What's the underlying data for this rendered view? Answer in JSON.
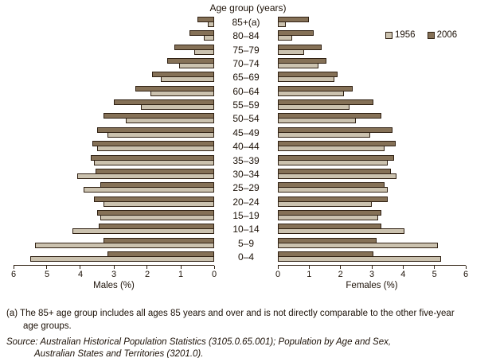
{
  "title": "Age group (years)",
  "legend": [
    {
      "label": "1956",
      "color": "#cbc2af"
    },
    {
      "label": "2006",
      "color": "#857157"
    }
  ],
  "colors": {
    "bar_1956": "#cbc2af",
    "bar_2006": "#857157",
    "outline": "#2f2012",
    "text": "#1d1208",
    "background": "#ffffff"
  },
  "chart_data": {
    "type": "bar",
    "subtype": "population-pyramid",
    "title": "Age group (years)",
    "categories": [
      "85+(a)",
      "80–84",
      "75–79",
      "70–74",
      "65–69",
      "60–64",
      "55–59",
      "50–54",
      "45–49",
      "40–44",
      "35–39",
      "30–34",
      "25–29",
      "20–24",
      "15–19",
      "10–14",
      "5–9",
      "0–4"
    ],
    "legend_position": "top-right",
    "bar_stack_order": "2006 above 1956 in each category pair",
    "panels": [
      {
        "side": "male",
        "axis_label": "Males (%)",
        "xlim": [
          0,
          6
        ],
        "ticks": [
          6,
          5,
          4,
          3,
          2,
          1,
          0
        ],
        "reversed": true,
        "series": [
          {
            "name": "1956",
            "values": [
              0.2,
              0.3,
              0.6,
              1.05,
              1.6,
              1.9,
              2.2,
              2.65,
              3.2,
              3.5,
              3.6,
              4.1,
              3.9,
              3.3,
              3.4,
              4.25,
              5.35,
              5.5
            ]
          },
          {
            "name": "2006",
            "values": [
              0.5,
              0.75,
              1.2,
              1.4,
              1.85,
              2.35,
              3.0,
              3.3,
              3.5,
              3.65,
              3.7,
              3.55,
              3.4,
              3.6,
              3.5,
              3.45,
              3.3,
              3.2
            ]
          }
        ]
      },
      {
        "side": "female",
        "axis_label": "Females (%)",
        "xlim": [
          0,
          6
        ],
        "ticks": [
          0,
          1,
          2,
          3,
          4,
          5,
          6
        ],
        "reversed": false,
        "series": [
          {
            "name": "1956",
            "values": [
              0.25,
              0.45,
              0.85,
              1.3,
              1.8,
              2.1,
              2.3,
              2.5,
              2.95,
              3.4,
              3.5,
              3.8,
              3.5,
              3.0,
              3.2,
              4.05,
              5.1,
              5.2
            ]
          },
          {
            "name": "2006",
            "values": [
              1.0,
              1.15,
              1.4,
              1.55,
              1.9,
              2.4,
              3.05,
              3.3,
              3.65,
              3.75,
              3.7,
              3.6,
              3.4,
              3.5,
              3.3,
              3.3,
              3.15,
              3.05
            ]
          }
        ]
      }
    ]
  },
  "footnote": {
    "text": "(a) The 85+ age group includes all ages 85 years and over and is not directly comparable to the other five-year\nage groups."
  },
  "source": {
    "text": "Source: Australian Historical Population Statistics (3105.0.65.001); Population by Age and Sex,\nAustralian States and Territories (3201.0)."
  }
}
